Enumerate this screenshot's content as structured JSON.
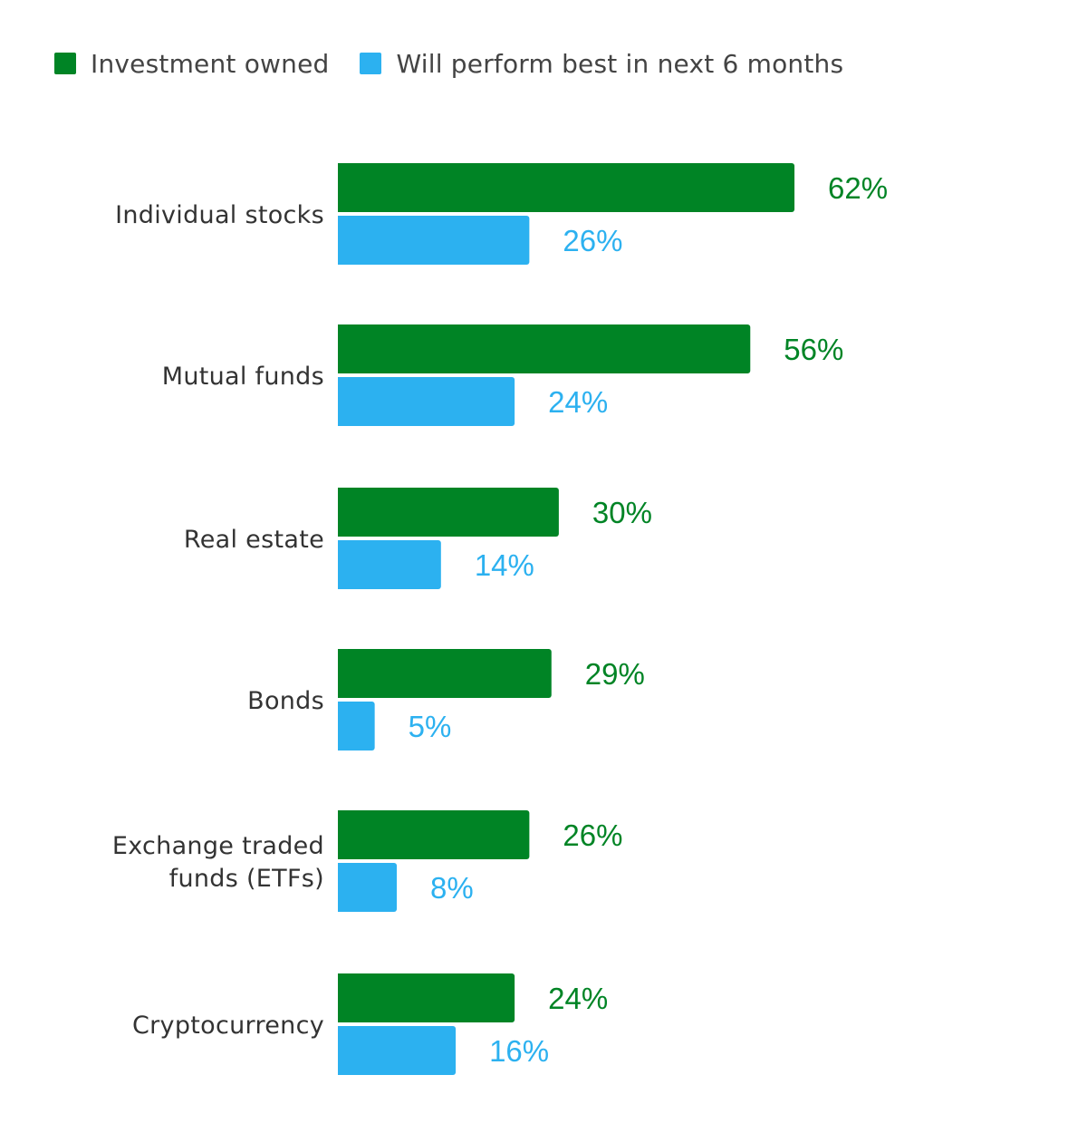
{
  "chart_data": {
    "type": "bar",
    "orientation": "horizontal",
    "categories": [
      [
        "Individual stocks"
      ],
      [
        "Mutual funds"
      ],
      [
        "Real estate"
      ],
      [
        "Bonds"
      ],
      [
        "Exchange traded",
        "funds (ETFs)"
      ],
      [
        "Cryptocurrency"
      ]
    ],
    "series": [
      {
        "name": "Investment owned",
        "color": "#008425",
        "values": [
          62,
          56,
          30,
          29,
          26,
          24
        ]
      },
      {
        "name": "Will perform best in next 6 months",
        "color": "#2CB1F0",
        "values": [
          26,
          24,
          14,
          5,
          8,
          16
        ]
      }
    ],
    "value_suffix": "%",
    "legend_position": "top-left",
    "grid": false,
    "xlim": [
      0,
      100
    ]
  }
}
